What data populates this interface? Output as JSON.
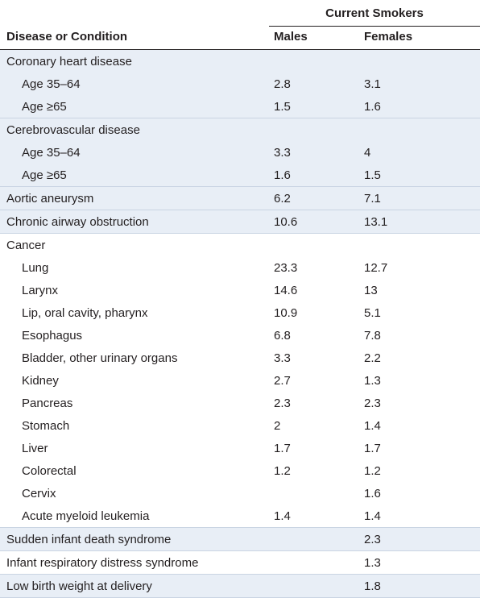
{
  "header": {
    "group": "Current Smokers",
    "col0": "Disease or Condition",
    "col1": "Males",
    "col2": "Females"
  },
  "groups": [
    {
      "shade": true,
      "rows": [
        {
          "label": "Coronary heart disease",
          "males": "",
          "females": "",
          "sub": false
        },
        {
          "label": "Age 35–64",
          "males": "2.8",
          "females": "3.1",
          "sub": true
        },
        {
          "label": "Age ≥65",
          "males": "1.5",
          "females": "1.6",
          "sub": true
        }
      ]
    },
    {
      "shade": true,
      "rows": [
        {
          "label": "Cerebrovascular disease",
          "males": "",
          "females": "",
          "sub": false
        },
        {
          "label": "Age 35–64",
          "males": "3.3",
          "females": "4",
          "sub": true
        },
        {
          "label": "Age ≥65",
          "males": "1.6",
          "females": "1.5",
          "sub": true
        }
      ]
    },
    {
      "shade": true,
      "rows": [
        {
          "label": "Aortic aneurysm",
          "males": "6.2",
          "females": "7.1",
          "sub": false
        }
      ]
    },
    {
      "shade": true,
      "rows": [
        {
          "label": "Chronic airway obstruction",
          "males": "10.6",
          "females": "13.1",
          "sub": false
        }
      ]
    },
    {
      "shade": false,
      "rows": [
        {
          "label": "Cancer",
          "males": "",
          "females": "",
          "sub": false
        },
        {
          "label": "Lung",
          "males": "23.3",
          "females": "12.7",
          "sub": true
        },
        {
          "label": "Larynx",
          "males": "14.6",
          "females": "13",
          "sub": true
        },
        {
          "label": "Lip, oral cavity, pharynx",
          "males": "10.9",
          "females": "5.1",
          "sub": true
        },
        {
          "label": "Esophagus",
          "males": "6.8",
          "females": "7.8",
          "sub": true
        },
        {
          "label": "Bladder, other urinary organs",
          "males": "3.3",
          "females": "2.2",
          "sub": true
        },
        {
          "label": "Kidney",
          "males": "2.7",
          "females": "1.3",
          "sub": true
        },
        {
          "label": "Pancreas",
          "males": "2.3",
          "females": "2.3",
          "sub": true
        },
        {
          "label": "Stomach",
          "males": "2",
          "females": "1.4",
          "sub": true
        },
        {
          "label": "Liver",
          "males": "1.7",
          "females": "1.7",
          "sub": true
        },
        {
          "label": "Colorectal",
          "males": "1.2",
          "females": "1.2",
          "sub": true
        },
        {
          "label": "Cervix",
          "males": "",
          "females": "1.6",
          "sub": true
        },
        {
          "label": "Acute myeloid leukemia",
          "males": "1.4",
          "females": "1.4",
          "sub": true
        }
      ]
    },
    {
      "shade": true,
      "rows": [
        {
          "label": "Sudden infant death syndrome",
          "males": "",
          "females": "2.3",
          "sub": false
        }
      ]
    },
    {
      "shade": false,
      "rows": [
        {
          "label": "Infant respiratory distress syndrome",
          "males": "",
          "females": "1.3",
          "sub": false
        }
      ]
    },
    {
      "shade": true,
      "rows": [
        {
          "label": "Low birth weight at delivery",
          "males": "",
          "females": "1.8",
          "sub": false
        }
      ]
    }
  ]
}
